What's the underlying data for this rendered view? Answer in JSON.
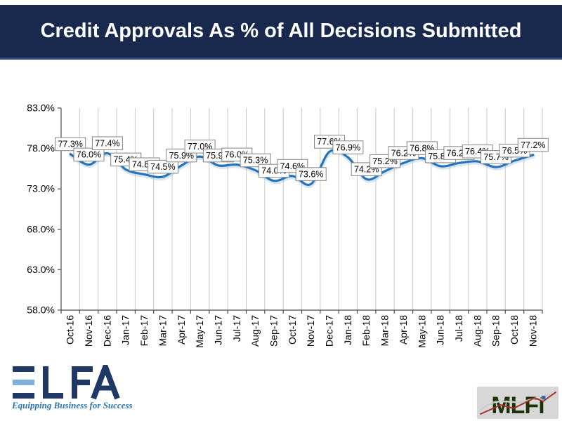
{
  "title": "Credit Approvals As % of All Decisions Submitted",
  "chart_data": {
    "type": "line",
    "title": "Credit Approvals As % of All Decisions Submitted",
    "series_name": "Credit Approvals As % of All Decisions Submitted",
    "categories": [
      "Oct-16",
      "Nov-16",
      "Dec-16",
      "Jan-17",
      "Feb-17",
      "Mar-17",
      "Apr-17",
      "May-17",
      "Jun-17",
      "Jul-17",
      "Aug-17",
      "Sep-17",
      "Oct-17",
      "Nov-17",
      "Dec-17",
      "Jan-18",
      "Feb-18",
      "Mar-18",
      "Apr-18",
      "May-18",
      "Jun-18",
      "Jul-18",
      "Aug-18",
      "Sep-18",
      "Oct-18",
      "Nov-18"
    ],
    "values": [
      77.3,
      76.0,
      77.4,
      75.4,
      74.8,
      74.5,
      75.9,
      77.0,
      75.9,
      76.0,
      75.3,
      74.0,
      74.6,
      73.6,
      77.6,
      76.9,
      74.2,
      75.2,
      76.2,
      76.8,
      75.8,
      76.2,
      76.4,
      75.7,
      76.5,
      77.2
    ],
    "xlabel": "",
    "ylabel": "",
    "ylim": [
      58.0,
      83.0
    ],
    "ytick_values": [
      58,
      63,
      68,
      73,
      78,
      83
    ],
    "ytick_labels": [
      "58.0%",
      "63.0%",
      "68.0%",
      "73.0%",
      "78.0%",
      "83.0%"
    ],
    "grid": "vertical-only",
    "legend": "none",
    "smoothed": true,
    "data_labels": "every point, one decimal with % sign, boxed above point",
    "x_label_rotation": -90
  },
  "logos": {
    "elfa": {
      "name": "ELFA",
      "tagline": "Equipping Business for Success"
    },
    "mlfi": {
      "label": "MLFi"
    }
  },
  "colors": {
    "title_bar_bg": "#18294D",
    "line": "#2573BA",
    "line_halo": "#8FB6DC",
    "grid": "#C8C8C8",
    "axis": "#4D4D4D",
    "label_box_border": "#848484",
    "label_box_fill": "#FFFFFF",
    "elfa_navy": "#1F3864",
    "elfa_lightblue": "#7FB0DC",
    "elfa_tagline": "#2E74B5",
    "mlfi_bg": "#D7D7D7",
    "mlfi_green": "#1D3409",
    "mlfi_red": "#A33226",
    "mlfi_gray": "#CDCDCD",
    "mlfi_dot_blue": "#2D6FB7"
  }
}
